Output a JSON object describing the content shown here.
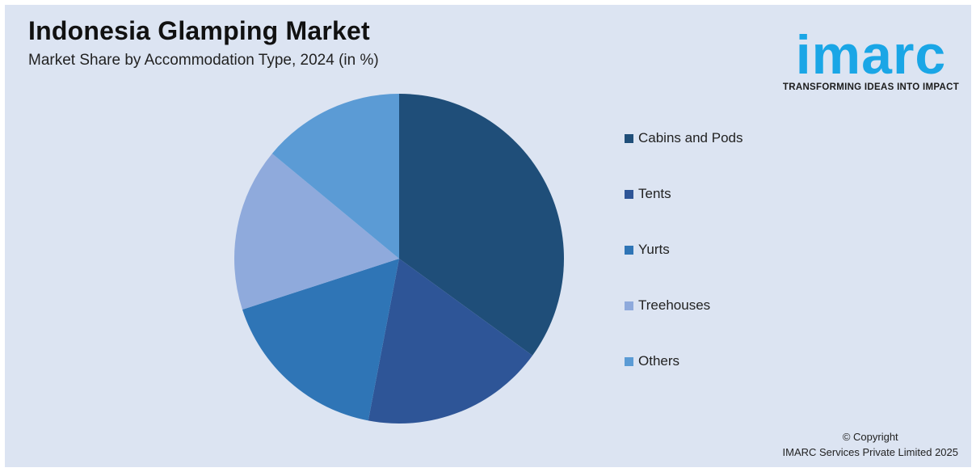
{
  "header": {
    "title": "Indonesia Glamping Market",
    "subtitle": "Market Share by Accommodation Type, 2024 (in %)"
  },
  "logo": {
    "wordmark": "imarc",
    "tagline": "TRANSFORMING IDEAS INTO IMPACT",
    "color": "#1aa6e6"
  },
  "chart_data": {
    "type": "pie",
    "title": "Indonesia Glamping Market",
    "subtitle": "Market Share by Accommodation Type, 2024 (in %)",
    "start_angle_deg": 0,
    "direction": "clockwise",
    "legend_position": "right",
    "slices": [
      {
        "name": "Cabins and Pods",
        "value": 35,
        "color": "#1f4e79"
      },
      {
        "name": "Tents",
        "value": 18,
        "color": "#2e5597"
      },
      {
        "name": "Yurts",
        "value": 17,
        "color": "#2f75b6"
      },
      {
        "name": "Treehouses",
        "value": 16,
        "color": "#8faadc"
      },
      {
        "name": "Others",
        "value": 14,
        "color": "#5b9bd5"
      }
    ]
  },
  "footer": {
    "copyright_line1": "© Copyright",
    "copyright_line2": "IMARC Services Private Limited 2025"
  }
}
